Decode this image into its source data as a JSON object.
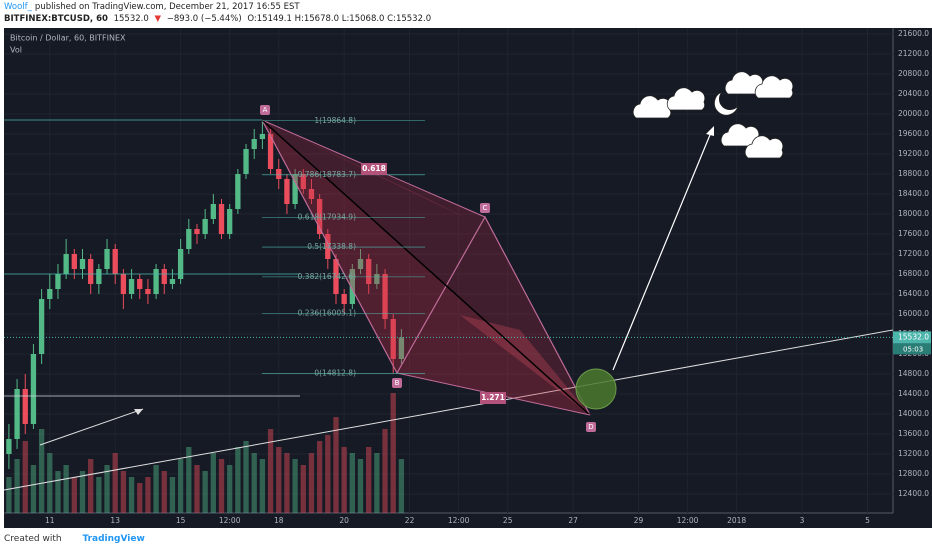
{
  "header": {
    "author": "Woolf_",
    "published": "published on TradingView.com, December 21, 2017 16:55 EST",
    "symbol": "BITFINEX:BTCUSD, 60",
    "price": "15532.0",
    "arrow": "▼",
    "change": "−893.0 (−5.44%)",
    "ohlc": "O:15149.1 H:15678.0 L:15068.0 C:15532.0"
  },
  "footer": {
    "created": "Created with",
    "brand": "TradingView"
  },
  "chart_data": {
    "type": "candlestick",
    "title": "Bitcoin / Dollar, 60, BITFINEX",
    "volume_label": "Vol",
    "up_color": "#53b987",
    "down_color": "#eb4d5c",
    "x": [
      9.75,
      10,
      10.25,
      10.5,
      10.75,
      11,
      11.25,
      11.5,
      11.75,
      12,
      12.25,
      12.5,
      12.75,
      13,
      13.25,
      13.5,
      13.75,
      14,
      14.25,
      14.5,
      14.75,
      15,
      15.25,
      15.5,
      15.75,
      16,
      16.25,
      16.5,
      16.75,
      17,
      17.25,
      17.5,
      17.75,
      18,
      18.25,
      18.5,
      18.75,
      19,
      19.25,
      19.5,
      19.75,
      20,
      20.25,
      20.5,
      20.75,
      21,
      21.25,
      21.5,
      21.75
    ],
    "open": [
      13200,
      13500,
      14500,
      13800,
      15200,
      16300,
      16500,
      16800,
      17200,
      16900,
      17100,
      16600,
      16900,
      17300,
      16800,
      16400,
      16700,
      16500,
      16400,
      16900,
      16600,
      16700,
      17300,
      17700,
      17600,
      17900,
      18200,
      17600,
      18100,
      18800,
      19300,
      19500,
      19600,
      18900,
      18700,
      18200,
      18800,
      18500,
      18300,
      17600,
      17100,
      16400,
      16200,
      16900,
      17100,
      16600,
      16800,
      15900,
      15100
    ],
    "high": [
      13800,
      14700,
      14800,
      15400,
      16500,
      16800,
      17000,
      17500,
      17300,
      17300,
      17200,
      17000,
      17500,
      17400,
      16900,
      16900,
      16800,
      16700,
      17000,
      17000,
      16900,
      17500,
      17900,
      17800,
      18100,
      18400,
      18300,
      18200,
      18900,
      19400,
      19700,
      19864.8,
      19700,
      19100,
      18800,
      18900,
      18900,
      18700,
      18400,
      17700,
      17200,
      16500,
      17000,
      17300,
      17200,
      17000,
      16900,
      16000,
      15700
    ],
    "low": [
      12900,
      13300,
      13600,
      13700,
      15000,
      16100,
      16300,
      16700,
      16700,
      16700,
      16400,
      16400,
      16800,
      16600,
      16100,
      16300,
      16300,
      16200,
      16300,
      16400,
      16500,
      16600,
      17200,
      17400,
      17500,
      17800,
      17500,
      17500,
      18000,
      18700,
      19100,
      19300,
      18800,
      18500,
      18000,
      18100,
      18400,
      18200,
      17500,
      16900,
      16200,
      16000,
      16100,
      16800,
      16400,
      16500,
      15700,
      14812.8,
      15000
    ],
    "close": [
      13500,
      14500,
      13800,
      15200,
      16300,
      16500,
      16800,
      17200,
      16900,
      17100,
      16600,
      16900,
      17300,
      16800,
      16400,
      16700,
      16500,
      16400,
      16900,
      16600,
      16700,
      17300,
      17700,
      17600,
      17900,
      18200,
      17600,
      18100,
      18800,
      19300,
      19500,
      19600,
      18900,
      18700,
      18200,
      18800,
      18500,
      18300,
      17600,
      17100,
      16400,
      16200,
      16900,
      17100,
      16600,
      16800,
      15900,
      15100,
      15532
    ],
    "volume": [
      30,
      45,
      60,
      40,
      70,
      50,
      35,
      40,
      30,
      35,
      45,
      30,
      40,
      50,
      35,
      30,
      25,
      30,
      40,
      35,
      30,
      45,
      55,
      40,
      35,
      50,
      45,
      40,
      55,
      60,
      50,
      45,
      70,
      55,
      50,
      45,
      40,
      50,
      60,
      65,
      80,
      55,
      50,
      45,
      55,
      50,
      70,
      100,
      45
    ],
    "xlim": [
      9.6,
      36.78
    ],
    "ylim": [
      12020,
      21720
    ],
    "xticks": [
      11,
      13,
      15,
      {
        "value": 16.5,
        "label": "12:00"
      },
      18,
      20,
      22,
      {
        "value": 23.5,
        "label": "12:00"
      },
      25,
      27,
      29,
      {
        "value": 30.5,
        "label": "12:00"
      },
      {
        "value": 32,
        "label": "2018"
      },
      {
        "value": 34,
        "label": "3"
      },
      {
        "value": 36,
        "label": "5"
      }
    ],
    "yticks": [
      {
        "value": 12400,
        "label": "12400.0"
      },
      {
        "value": 12800,
        "label": "12800.0"
      },
      {
        "value": 13200,
        "label": "13200.0"
      },
      {
        "value": 13600,
        "label": "13600.0"
      },
      {
        "value": 14000,
        "label": "14000.0"
      },
      {
        "value": 14400,
        "label": "14400.0"
      },
      {
        "value": 14800,
        "label": "14800.0"
      },
      {
        "value": 15200,
        "label": "15200.0"
      },
      {
        "value": 15600,
        "label": "15600.0"
      },
      {
        "value": 16000,
        "label": "16000.0"
      },
      {
        "value": 16400,
        "label": "16400.0"
      },
      {
        "value": 16800,
        "label": "16800.0"
      },
      {
        "value": 17200,
        "label": "17200.0"
      },
      {
        "value": 17600,
        "label": "17600.0"
      },
      {
        "value": 18000,
        "label": "18000.0"
      },
      {
        "value": 18400,
        "label": "18400.0"
      },
      {
        "value": 18800,
        "label": "18800.0"
      },
      {
        "value": 19200,
        "label": "19200.0"
      },
      {
        "value": 19600,
        "label": "19600.0"
      },
      {
        "value": 20000,
        "label": "20000.0"
      },
      {
        "value": 20400,
        "label": "20400.0"
      },
      {
        "value": 20800,
        "label": "20800.0"
      },
      {
        "value": 21200,
        "label": "21200.0"
      },
      {
        "value": 21600,
        "label": "21600.0"
      }
    ],
    "last_price": {
      "value": 15532,
      "label": "15532.0"
    },
    "countdown": "05:03",
    "fib_levels": [
      {
        "value": 19864.8,
        "label": "1(19864.8)"
      },
      {
        "value": 18783.7,
        "label": "0.786(18783.7)"
      },
      {
        "value": 17934.9,
        "label": "0.618(17934.9)"
      },
      {
        "value": 17338.8,
        "label": "0.5(17338.8)"
      },
      {
        "value": 16742.6,
        "label": "0.382(16742.6)"
      },
      {
        "value": 16005.1,
        "label": "0.236(16005.1)"
      },
      {
        "value": 14812.8,
        "label": "0(14812.8)"
      }
    ],
    "pattern_labels": [
      "A",
      "B",
      "C",
      "D"
    ],
    "ratio_labels": [
      "0.618",
      "1.271"
    ]
  }
}
